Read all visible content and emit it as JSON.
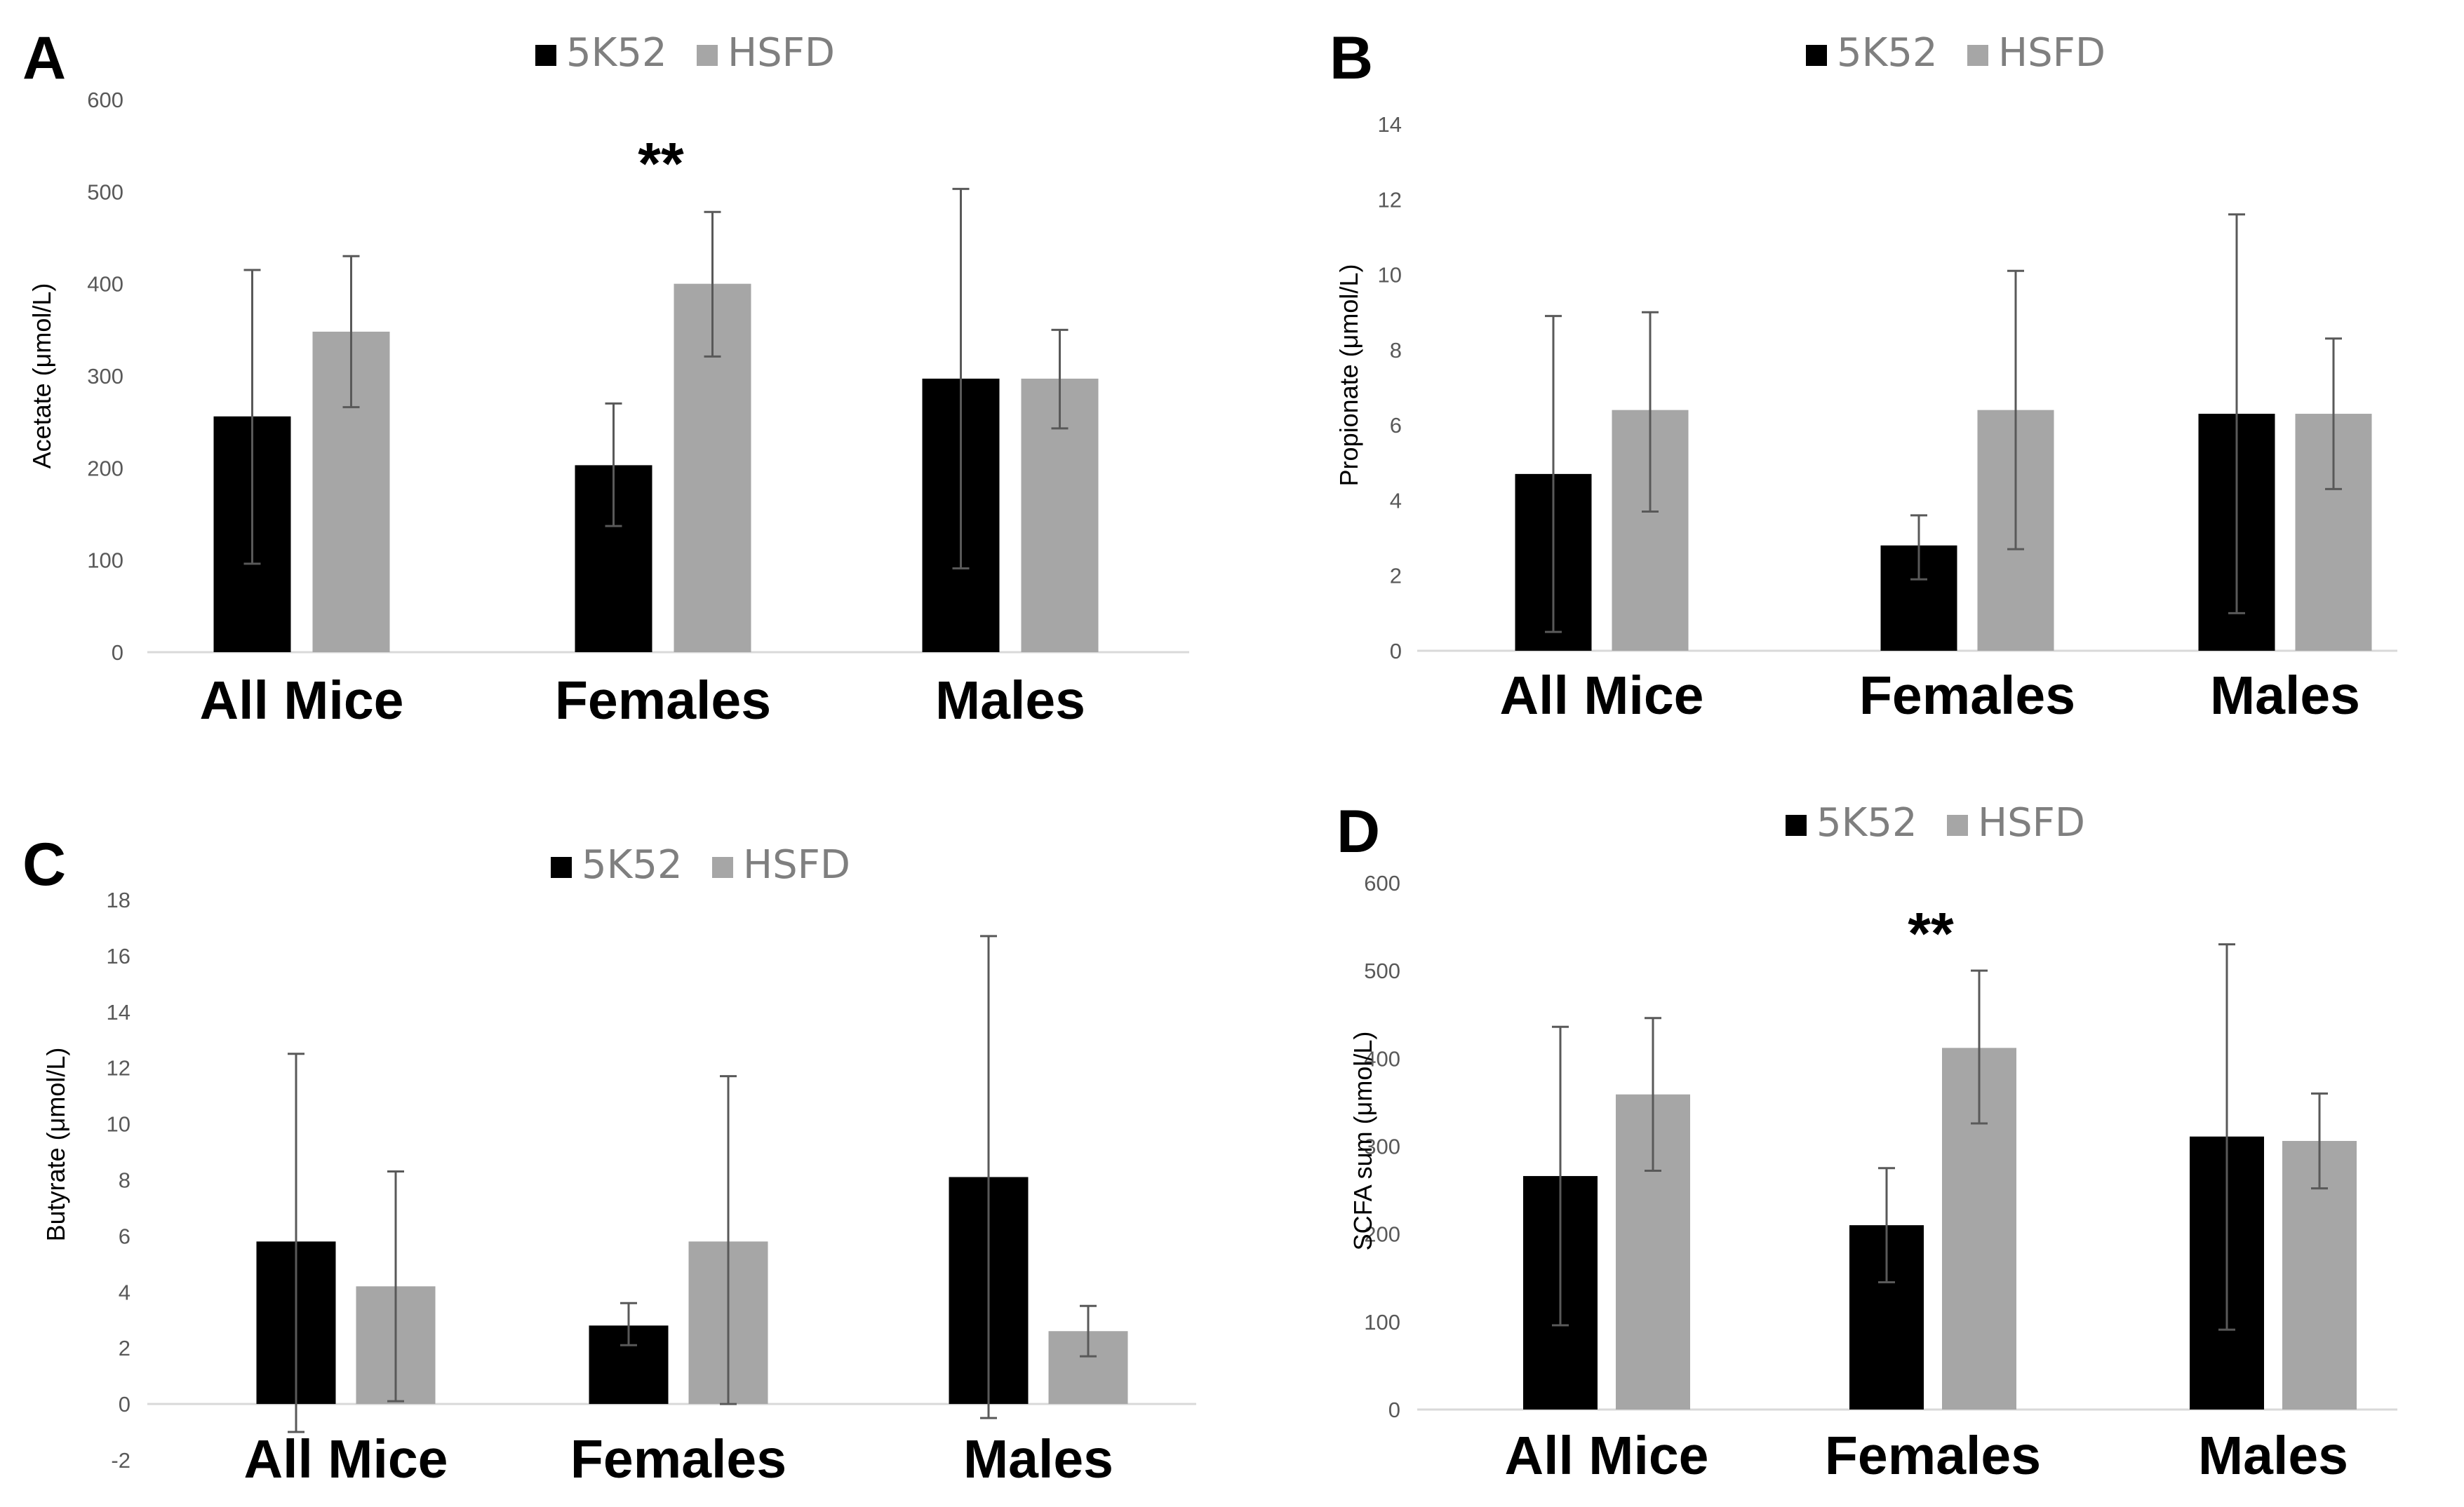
{
  "chart_data": [
    {
      "panel": "A",
      "type": "bar",
      "title": "",
      "xlabel": "",
      "ylabel": "Acetate (μmol/L)",
      "ylim": [
        0,
        600
      ],
      "yticks": [
        0,
        100,
        200,
        300,
        400,
        500,
        600
      ],
      "grid": false,
      "legend_position": "top-center",
      "categories": [
        "All Mice",
        "Females",
        "Males"
      ],
      "series": [
        {
          "name": "5K52",
          "color": "#000000",
          "values": [
            256,
            203,
            297
          ],
          "err_low": [
            96,
            137,
            91
          ],
          "err_high": [
            415,
            270,
            503
          ]
        },
        {
          "name": "HSFD",
          "color": "#a6a6a6",
          "values": [
            348,
            400,
            297
          ],
          "err_low": [
            266,
            321,
            243
          ],
          "err_high": [
            430,
            478,
            350
          ]
        }
      ],
      "annotations": [
        {
          "category": "Females",
          "text": "**"
        }
      ]
    },
    {
      "panel": "B",
      "type": "bar",
      "title": "",
      "xlabel": "",
      "ylabel": "Propionate (μmol/L)",
      "ylim": [
        0,
        14
      ],
      "yticks": [
        0,
        2,
        4,
        6,
        8,
        10,
        12,
        14
      ],
      "grid": false,
      "legend_position": "top-center",
      "categories": [
        "All Mice",
        "Females",
        "Males"
      ],
      "series": [
        {
          "name": "5K52",
          "color": "#000000",
          "values": [
            4.7,
            2.8,
            6.3
          ],
          "err_low": [
            0.5,
            1.9,
            1.0
          ],
          "err_high": [
            8.9,
            3.6,
            11.6
          ]
        },
        {
          "name": "HSFD",
          "color": "#a6a6a6",
          "values": [
            6.4,
            6.4,
            6.3
          ],
          "err_low": [
            3.7,
            2.7,
            4.3
          ],
          "err_high": [
            9.0,
            10.1,
            8.3
          ]
        }
      ],
      "annotations": []
    },
    {
      "panel": "C",
      "type": "bar",
      "title": "",
      "xlabel": "",
      "ylabel": "Butyrate (μmol/L)",
      "ylim": [
        -2,
        18
      ],
      "yticks": [
        -2,
        0,
        2,
        4,
        6,
        8,
        10,
        12,
        14,
        16,
        18
      ],
      "grid": false,
      "legend_position": "top-center",
      "categories": [
        "All Mice",
        "Females",
        "Males"
      ],
      "series": [
        {
          "name": "5K52",
          "color": "#000000",
          "values": [
            5.8,
            2.8,
            8.1
          ],
          "err_low": [
            -1.0,
            2.1,
            -0.5
          ],
          "err_high": [
            12.5,
            3.6,
            16.7
          ]
        },
        {
          "name": "HSFD",
          "color": "#a6a6a6",
          "values": [
            4.2,
            5.8,
            2.6
          ],
          "err_low": [
            0.1,
            0.0,
            1.7
          ],
          "err_high": [
            8.3,
            11.7,
            3.5
          ]
        }
      ],
      "annotations": []
    },
    {
      "panel": "D",
      "type": "bar",
      "title": "",
      "xlabel": "",
      "ylabel": "SCFA sum (μmol/L)",
      "ylim": [
        0,
        600
      ],
      "yticks": [
        0,
        100,
        200,
        300,
        400,
        500,
        600
      ],
      "grid": false,
      "legend_position": "top-center",
      "categories": [
        "All Mice",
        "Females",
        "Males"
      ],
      "series": [
        {
          "name": "5K52",
          "color": "#000000",
          "values": [
            266,
            210,
            311
          ],
          "err_low": [
            96,
            145,
            91
          ],
          "err_high": [
            436,
            275,
            530
          ]
        },
        {
          "name": "HSFD",
          "color": "#a6a6a6",
          "values": [
            359,
            412,
            306
          ],
          "err_low": [
            272,
            326,
            252
          ],
          "err_high": [
            446,
            500,
            360
          ]
        }
      ],
      "annotations": [
        {
          "category": "Females",
          "text": "**"
        }
      ]
    }
  ]
}
